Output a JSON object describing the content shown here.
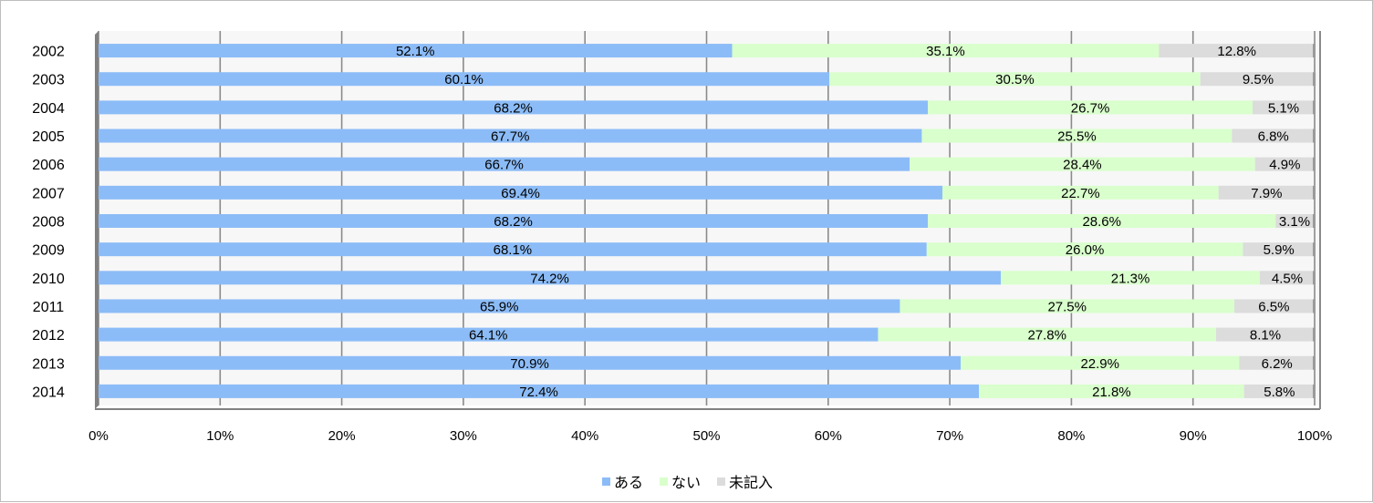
{
  "chart_data": {
    "type": "bar",
    "orientation": "horizontal",
    "stacked": true,
    "percent_stacked": true,
    "categories": [
      "2002",
      "2003",
      "2004",
      "2005",
      "2006",
      "2007",
      "2008",
      "2009",
      "2010",
      "2011",
      "2012",
      "2013",
      "2014"
    ],
    "series": [
      {
        "name": "ある",
        "color": "#8cbcf7",
        "values": [
          52.1,
          60.1,
          68.2,
          67.7,
          66.7,
          69.4,
          68.2,
          68.1,
          74.2,
          65.9,
          64.1,
          70.9,
          72.4
        ],
        "labels": [
          "52.1%",
          "60.1%",
          "68.2%",
          "67.7%",
          "66.7%",
          "69.4%",
          "68.2%",
          "68.1%",
          "74.2%",
          "65.9%",
          "64.1%",
          "70.9%",
          "72.4%"
        ]
      },
      {
        "name": "ない",
        "color": "#d9ffcc",
        "values": [
          35.1,
          30.5,
          26.7,
          25.5,
          28.4,
          22.7,
          28.6,
          26.0,
          21.3,
          27.5,
          27.8,
          22.9,
          21.8
        ],
        "labels": [
          "35.1%",
          "30.5%",
          "26.7%",
          "25.5%",
          "28.4%",
          "22.7%",
          "28.6%",
          "26.0%",
          "21.3%",
          "27.5%",
          "27.8%",
          "22.9%",
          "21.8%"
        ]
      },
      {
        "name": "未記入",
        "color": "#dcdcdc",
        "values": [
          12.8,
          9.5,
          5.1,
          6.8,
          4.9,
          7.9,
          3.1,
          5.9,
          4.5,
          6.5,
          8.1,
          6.2,
          5.8
        ],
        "labels": [
          "12.8%",
          "9.5%",
          "5.1%",
          "6.8%",
          "4.9%",
          "7.9%",
          "3.1%",
          "5.9%",
          "4.5%",
          "6.5%",
          "8.1%",
          "6.2%",
          "5.8%"
        ]
      }
    ],
    "x_ticks": [
      "0%",
      "10%",
      "20%",
      "30%",
      "40%",
      "50%",
      "60%",
      "70%",
      "80%",
      "90%",
      "100%"
    ],
    "xlim": [
      0,
      100
    ],
    "grid": "vertical",
    "legend_position": "bottom",
    "title": "",
    "xlabel": "",
    "ylabel": ""
  }
}
